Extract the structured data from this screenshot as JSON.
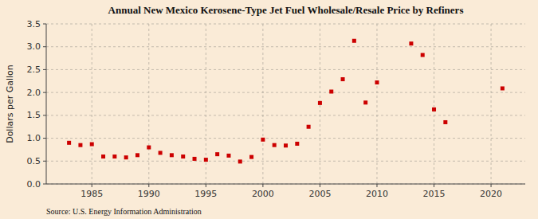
{
  "chart_data": {
    "type": "scatter",
    "title": "Annual New Mexico Kerosene-Type Jet Fuel Wholesale/Resale Price by Refiners",
    "y_label": "Dollars per Gallon",
    "annotations": [
      "Source: U.S. Energy Information Administration"
    ],
    "color": "#cc0000",
    "marker": "square",
    "grid": true,
    "x": [
      1983,
      1984,
      1985,
      1986,
      1987,
      1988,
      1989,
      1990,
      1991,
      1992,
      1993,
      1994,
      1995,
      1996,
      1997,
      1998,
      1999,
      2000,
      2001,
      2002,
      2003,
      2004,
      2005,
      2006,
      2007,
      2008,
      2009,
      2010,
      2013,
      2014,
      2015,
      2016,
      2021
    ],
    "values": [
      0.9,
      0.85,
      0.87,
      0.6,
      0.6,
      0.58,
      0.63,
      0.8,
      0.68,
      0.63,
      0.6,
      0.55,
      0.53,
      0.65,
      0.62,
      0.49,
      0.59,
      0.97,
      0.85,
      0.84,
      0.88,
      1.25,
      1.77,
      2.02,
      2.29,
      3.13,
      1.78,
      2.22,
      3.07,
      2.82,
      1.63,
      1.35,
      2.09
    ],
    "xlim": [
      1981,
      2023
    ],
    "ylim": [
      0.0,
      3.5
    ],
    "xticks": [
      1985,
      1990,
      1995,
      2000,
      2005,
      2010,
      2015,
      2020
    ],
    "yticks": [
      {
        "value": 0.0,
        "label": "0.0"
      },
      0.5,
      {
        "value": 1.0,
        "label": "1.0"
      },
      1.5,
      {
        "value": 2.0,
        "label": "2.0"
      },
      2.5,
      {
        "value": 3.0,
        "label": "3.0"
      },
      3.5
    ]
  }
}
